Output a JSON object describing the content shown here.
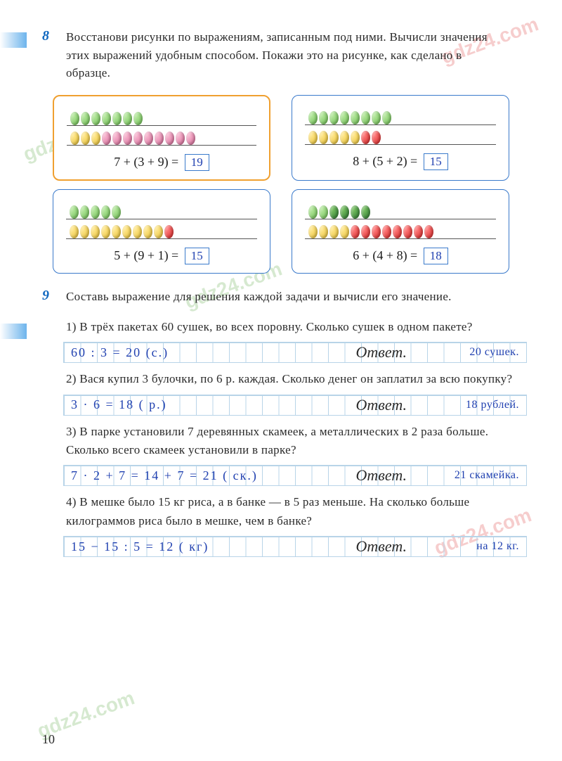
{
  "page_number": "10",
  "watermark_text": "gdz24.com",
  "task8": {
    "number": "8",
    "text": "Восстанови рисунки по выражениям, записанным под ними. Вычисли значения этих выражений удобным способом. Покажи это на рисунке, как сделано в образце.",
    "boxes": [
      {
        "border_color": "#f0a030",
        "wire1": [
          "g",
          "g",
          "g",
          "g",
          "g",
          "g",
          "g"
        ],
        "wire2": [
          "y",
          "y",
          "y",
          "p",
          "p",
          "p",
          "p",
          "p",
          "p",
          "p",
          "p",
          "p"
        ],
        "equation": "7 + (3 + 9) =",
        "answer": "19"
      },
      {
        "border_color": "#3a7acb",
        "wire1": [
          "g",
          "g",
          "g",
          "g",
          "g",
          "g",
          "g",
          "g"
        ],
        "wire2": [
          "y",
          "y",
          "y",
          "y",
          "y",
          "r",
          "r"
        ],
        "equation": "8 + (5 + 2) =",
        "answer": "15"
      },
      {
        "border_color": "#3a7acb",
        "wire1": [
          "g",
          "g",
          "g",
          "g",
          "g"
        ],
        "wire2": [
          "y",
          "y",
          "y",
          "y",
          "y",
          "y",
          "y",
          "y",
          "y",
          "r"
        ],
        "equation": "5 + (9 + 1) =",
        "answer": "15"
      },
      {
        "border_color": "#3a7acb",
        "wire1": [
          "g",
          "g",
          "dg",
          "dg",
          "dg",
          "dg"
        ],
        "wire2": [
          "y",
          "y",
          "y",
          "y",
          "r",
          "r",
          "r",
          "r",
          "r",
          "r",
          "r",
          "r"
        ],
        "equation": "6 + (4 + 8) =",
        "answer": "18"
      }
    ]
  },
  "task9": {
    "number": "9",
    "text": "Составь выражение для решения каждой задачи и вычисли его значение.",
    "subtasks": [
      {
        "prompt": "1) В трёх пакетах 60 сушек, во всех поровну. Сколько сушек в одном пакете?",
        "work": "60 : 3 = 20 (с.)",
        "answer_label": "Ответ.",
        "answer_value": "20 сушек."
      },
      {
        "prompt": "2) Вася купил 3 булочки, по 6 р. каждая. Сколько денег он заплатил за всю покупку?",
        "work": "3 · 6 = 18 ( р.)",
        "answer_label": "Ответ.",
        "answer_value": "18 рублей."
      },
      {
        "prompt": "3) В парке установили 7 деревянных скамеек, а металлических в 2 раза больше. Сколько всего скамеек установили в парке?",
        "work": "7 · 2 + 7 = 14 + 7 = 21 ( ск.)",
        "answer_label": "Ответ.",
        "answer_value": "21 скамейка."
      },
      {
        "prompt": "4) В мешке было 15 кг риса, а в банке — в 5 раз меньше. На сколько больше килограммов риса было в мешке, чем в банке?",
        "work": "15 − 15 : 5 = 12 ( кг)",
        "answer_label": "Ответ.",
        "answer_value": "на 12 кг."
      }
    ]
  },
  "colors": {
    "task_number": "#1068c0",
    "box_border": "#3a7acb",
    "box_border_orange": "#f0a030",
    "handwriting": "#2040b0",
    "grid_line": "#b8d4e8",
    "text": "#2a2a2a"
  }
}
